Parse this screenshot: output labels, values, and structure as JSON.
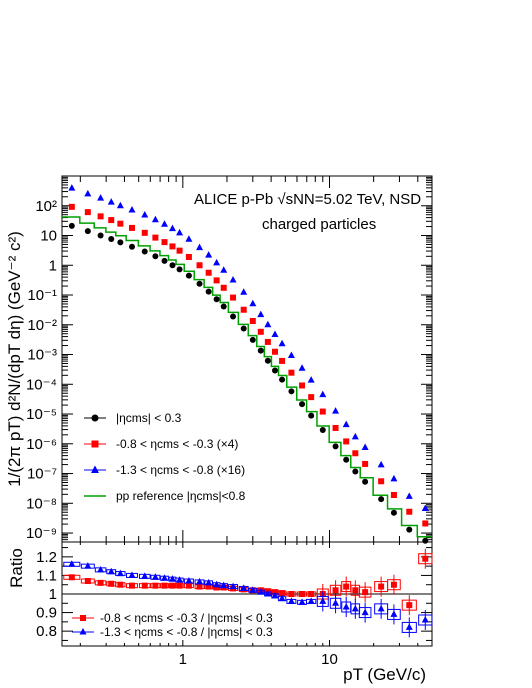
{
  "chart_data": [
    {
      "type": "scatter",
      "title": "ALICE  p-Pb √sNN=5.02 TeV, NSD",
      "subtitle": "charged particles",
      "ylabel": "1/(2π pT) d²N/(dpT dη) (GeV⁻² c²)",
      "xlabel": "pT (GeV/c)",
      "x_scale": "log",
      "y_scale": "log",
      "xlim": [
        0.15,
        50
      ],
      "ylim": [
        5e-10,
        1000
      ],
      "ytick_labels": [
        "10²",
        "10",
        "1",
        "10⁻¹",
        "10⁻²",
        "10⁻³",
        "10⁻⁴",
        "10⁻⁵",
        "10⁻⁶",
        "10⁻⁷",
        "10⁻⁸",
        "10⁻⁹"
      ],
      "legend_placement": "bottom-left",
      "x": [
        0.175,
        0.225,
        0.275,
        0.325,
        0.375,
        0.45,
        0.55,
        0.65,
        0.75,
        0.85,
        0.95,
        1.1,
        1.3,
        1.5,
        1.7,
        1.9,
        2.2,
        2.6,
        3.0,
        3.4,
        3.8,
        4.25,
        4.75,
        5.5,
        6.5,
        7.5,
        9.0,
        11.0,
        13.0,
        15.0,
        17.5,
        22.5,
        27.5,
        35.0,
        45.0
      ],
      "series": [
        {
          "name": "|ηcms| < 0.3",
          "marker": "circle",
          "color": "#000000",
          "values": [
            21,
            14,
            10,
            7.6,
            5.9,
            4.2,
            2.9,
            2.0,
            1.4,
            1.0,
            0.73,
            0.45,
            0.24,
            0.13,
            0.072,
            0.041,
            0.019,
            0.0075,
            0.0031,
            0.00135,
            0.00062,
            0.00029,
            0.000143,
            5.8e-05,
            2.15e-05,
            8.8e-06,
            2.9e-06,
            8.2e-07,
            2.9e-07,
            1.17e-07,
            5.3e-08,
            1.38e-08,
            4.8e-09,
            1.3e-09,
            5.5e-10
          ]
        },
        {
          "name": "-0.8 < ηcms < -0.3 (×4)",
          "marker": "square",
          "color": "#ff0000",
          "values": [
            92,
            61,
            44,
            33,
            25,
            18,
            12.3,
            8.5,
            6.0,
            4.3,
            3.1,
            1.9,
            1.0,
            0.56,
            0.31,
            0.175,
            0.082,
            0.032,
            0.0134,
            0.0058,
            0.00265,
            0.00124,
            0.00061,
            0.000245,
            9.1e-05,
            3.7e-05,
            1.21e-05,
            3.4e-06,
            1.2e-06,
            4.8e-07,
            2.1e-07,
            5.5e-08,
            1.9e-08,
            5.2e-09,
            2.1e-09
          ]
        },
        {
          "name": "-1.3 < ηcms < -0.8 (×16)",
          "marker": "triangle",
          "color": "#0000ff",
          "values": [
            390,
            250,
            180,
            133,
            100,
            72,
            49,
            34,
            24,
            17,
            12.3,
            7.5,
            3.9,
            2.2,
            1.2,
            0.68,
            0.32,
            0.124,
            0.051,
            0.022,
            0.01,
            0.0047,
            0.00231,
            0.00093,
            0.000345,
            0.000138,
            4.48e-05,
            1.25e-05,
            4.4e-06,
            1.7e-06,
            7.5e-07,
            1.95e-07,
            6.6e-08,
            1.7e-08,
            6.7e-09
          ]
        },
        {
          "name": "pp reference |ηcms|<0.8",
          "marker": "step-line",
          "color": "#00a000",
          "values": [
            42,
            26,
            18,
            13,
            9.8,
            6.8,
            4.5,
            3.05,
            2.1,
            1.5,
            1.07,
            0.63,
            0.33,
            0.18,
            0.099,
            0.056,
            0.026,
            0.0103,
            0.0043,
            0.00186,
            0.00085,
            0.0004,
            0.000197,
            8e-05,
            2.96e-05,
            1.21e-05,
            3.96e-06,
            1.12e-06,
            4e-07,
            1.6e-07,
            7.2e-08,
            1.87e-08,
            6.5e-09,
            1.8e-09,
            7.5e-10
          ]
        }
      ]
    },
    {
      "type": "scatter",
      "ylabel": "Ratio",
      "xlabel": "pT (GeV/c)",
      "x_scale": "log",
      "xlim": [
        0.15,
        50
      ],
      "ylim": [
        0.72,
        1.28
      ],
      "ytick_labels": [
        "1.2",
        "1.1",
        "1",
        "0.9",
        "0.8"
      ],
      "xtick_labels": [
        "1",
        "10"
      ],
      "reference_line": 1,
      "legend_placement": "bottom-left",
      "x": [
        0.175,
        0.225,
        0.275,
        0.325,
        0.375,
        0.45,
        0.55,
        0.65,
        0.75,
        0.85,
        0.95,
        1.1,
        1.3,
        1.5,
        1.7,
        1.9,
        2.2,
        2.6,
        3.0,
        3.4,
        3.8,
        4.25,
        4.75,
        5.5,
        6.5,
        7.5,
        9.0,
        11.0,
        13.0,
        15.0,
        17.5,
        22.5,
        27.5,
        35.0,
        45.0
      ],
      "series": [
        {
          "name": "-0.8 < ηcms < -0.3 / |ηcms| < 0.3",
          "marker": "square",
          "color": "#ff0000",
          "values": [
            1.09,
            1.07,
            1.06,
            1.055,
            1.05,
            1.045,
            1.045,
            1.045,
            1.045,
            1.045,
            1.045,
            1.045,
            1.04,
            1.04,
            1.035,
            1.035,
            1.03,
            1.025,
            1.02,
            1.02,
            1.015,
            1.01,
            1.005,
            1.0,
            1.0,
            1.0,
            1.0,
            1.02,
            1.04,
            1.02,
            1.01,
            1.04,
            1.05,
            0.94,
            1.19
          ]
        },
        {
          "name": "-1.3 < ηcms < -0.8 / |ηcms| < 0.3",
          "marker": "triangle",
          "color": "#0000ff",
          "values": [
            1.16,
            1.15,
            1.13,
            1.12,
            1.11,
            1.1,
            1.095,
            1.09,
            1.085,
            1.08,
            1.075,
            1.07,
            1.065,
            1.06,
            1.05,
            1.045,
            1.04,
            1.03,
            1.02,
            1.01,
            1.0,
            0.99,
            0.975,
            0.96,
            0.955,
            0.96,
            0.96,
            0.95,
            0.93,
            0.92,
            0.9,
            0.92,
            0.89,
            0.82,
            0.86
          ]
        }
      ]
    }
  ]
}
